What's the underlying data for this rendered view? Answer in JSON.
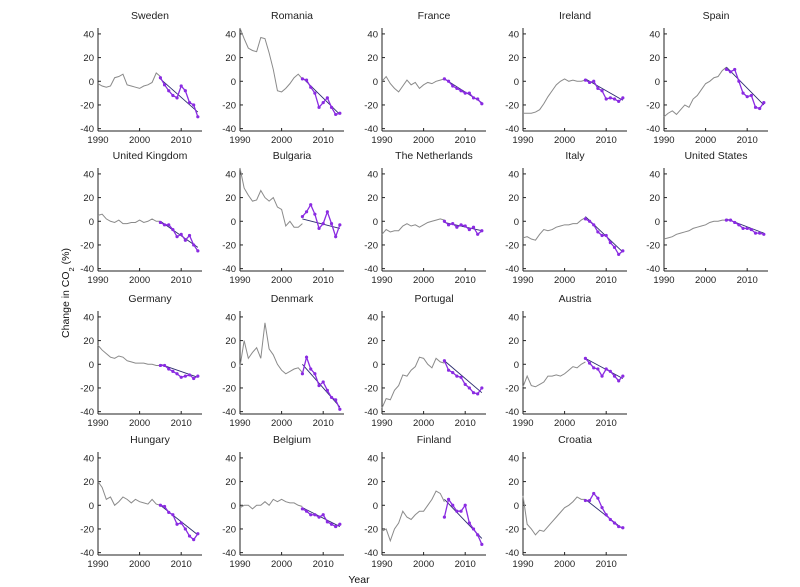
{
  "chart_data": {
    "type": "line",
    "xlabel": "Year",
    "ylabel": "Change in CO",
    "ylabel_sub": "2",
    "ylabel_suffix": " (%)",
    "xlim": [
      1990,
      2015
    ],
    "ylim": [
      -42,
      45
    ],
    "xticks": [
      1990,
      2000,
      2010
    ],
    "yticks": [
      -40,
      -20,
      0,
      20,
      40
    ],
    "grid": false,
    "colors": {
      "historical": "#8a8a8a",
      "recent": "#8a2be2",
      "trend": "#2b2b6e"
    },
    "recent_start_year": 2005,
    "panels": [
      {
        "title": "Sweden",
        "row": 0,
        "col": 0,
        "hist": [
          -2,
          -4,
          -5,
          -4,
          3,
          4,
          6,
          -3,
          -4,
          -5,
          -6,
          -4,
          -3,
          -1,
          7,
          4
        ],
        "recent": [
          3,
          -3,
          -8,
          -12,
          -14,
          -4,
          -8,
          -18,
          -20,
          -30
        ],
        "trend": [
          2,
          -26
        ]
      },
      {
        "title": "Romania",
        "row": 0,
        "col": 1,
        "hist": [
          45,
          36,
          28,
          26,
          25,
          37,
          36,
          24,
          10,
          -8,
          -9,
          -6,
          -2,
          3,
          6,
          2
        ],
        "recent": [
          2,
          1,
          -5,
          -10,
          -22,
          -18,
          -14,
          -22,
          -28,
          -27
        ],
        "trend": [
          3,
          -28
        ]
      },
      {
        "title": "France",
        "row": 0,
        "col": 2,
        "hist": [
          0,
          4,
          -2,
          -6,
          -9,
          -4,
          1,
          -3,
          -1,
          -6,
          -3,
          -1,
          -2,
          0,
          1,
          2
        ],
        "recent": [
          2,
          0,
          -4,
          -6,
          -8,
          -10,
          -10,
          -14,
          -15,
          -19
        ],
        "trend": [
          2,
          -18
        ]
      },
      {
        "title": "Ireland",
        "row": 0,
        "col": 3,
        "hist": [
          -27,
          -27,
          -27,
          -26,
          -24,
          -19,
          -13,
          -8,
          -3,
          0,
          2,
          0,
          1,
          0,
          0,
          1
        ],
        "recent": [
          1,
          -1,
          0,
          -6,
          -8,
          -15,
          -14,
          -15,
          -17,
          -14
        ],
        "trend": [
          2,
          -16
        ]
      },
      {
        "title": "Spain",
        "row": 0,
        "col": 4,
        "hist": [
          -30,
          -27,
          -25,
          -28,
          -24,
          -20,
          -22,
          -15,
          -12,
          -7,
          -2,
          0,
          3,
          4,
          9,
          12
        ],
        "recent": [
          10,
          8,
          10,
          0,
          -10,
          -13,
          -12,
          -22,
          -23,
          -18
        ],
        "trend": [
          12,
          -20
        ]
      },
      {
        "title": "United Kingdom",
        "row": 1,
        "col": 0,
        "hist": [
          5,
          6,
          2,
          0,
          -1,
          1,
          -2,
          -2,
          -1,
          -1,
          1,
          -1,
          0,
          2,
          0,
          0
        ],
        "recent": [
          -1,
          -3,
          -3,
          -7,
          -13,
          -11,
          -16,
          -12,
          -20,
          -25
        ],
        "trend": [
          0,
          -22
        ]
      },
      {
        "title": "Bulgaria",
        "row": 1,
        "col": 1,
        "hist": [
          45,
          28,
          22,
          17,
          18,
          26,
          20,
          17,
          20,
          12,
          10,
          -4,
          0,
          -5,
          -5,
          -2
        ],
        "recent": [
          4,
          8,
          14,
          6,
          -6,
          -2,
          8,
          -2,
          -13,
          -3
        ],
        "trend": [
          2,
          -6
        ]
      },
      {
        "title": "The Netherlands",
        "row": 1,
        "col": 2,
        "hist": [
          -11,
          -7,
          -9,
          -8,
          -8,
          -4,
          -2,
          -4,
          -3,
          -5,
          -3,
          -1,
          0,
          1,
          2,
          1
        ],
        "recent": [
          0,
          -3,
          -2,
          -5,
          -3,
          -4,
          -7,
          -5,
          -11,
          -8
        ],
        "trend": [
          -1,
          -8
        ]
      },
      {
        "title": "Italy",
        "row": 1,
        "col": 3,
        "hist": [
          -14,
          -13,
          -15,
          -16,
          -11,
          -7,
          -8,
          -7,
          -5,
          -4,
          -3,
          -3,
          -2,
          -2,
          1,
          3
        ],
        "recent": [
          2,
          0,
          -3,
          -9,
          -12,
          -12,
          -18,
          -22,
          -28,
          -25
        ],
        "trend": [
          4,
          -26
        ]
      },
      {
        "title": "United States",
        "row": 1,
        "col": 4,
        "hist": [
          -15,
          -14,
          -13,
          -11,
          -10,
          -9,
          -8,
          -6,
          -5,
          -4,
          -3,
          -1,
          0,
          0,
          1,
          1
        ],
        "recent": [
          1,
          1,
          -1,
          -3,
          -6,
          -6,
          -7,
          -10,
          -10,
          -11
        ],
        "trend": [
          2,
          -10
        ]
      },
      {
        "title": "Germany",
        "row": 2,
        "col": 0,
        "hist": [
          16,
          12,
          9,
          6,
          5,
          7,
          6,
          3,
          2,
          1,
          1,
          1,
          0,
          0,
          -1,
          -1
        ],
        "recent": [
          -1,
          -1,
          -4,
          -6,
          -8,
          -11,
          -10,
          -9,
          -12,
          -10
        ],
        "trend": [
          0,
          -11
        ]
      },
      {
        "title": "Denmark",
        "row": 2,
        "col": 1,
        "hist": [
          -2,
          20,
          5,
          10,
          14,
          5,
          35,
          13,
          8,
          0,
          -5,
          -8,
          -6,
          -4,
          -3,
          -7
        ],
        "recent": [
          -8,
          6,
          -4,
          -8,
          -18,
          -15,
          -22,
          -28,
          -30,
          -38
        ],
        "trend": [
          0,
          -36
        ]
      },
      {
        "title": "Portugal",
        "row": 2,
        "col": 2,
        "hist": [
          -37,
          -29,
          -30,
          -22,
          -18,
          -9,
          -10,
          -5,
          -2,
          6,
          5,
          0,
          -3,
          5,
          2,
          1
        ],
        "recent": [
          3,
          -5,
          -7,
          -10,
          -11,
          -17,
          -20,
          -24,
          -25,
          -20
        ],
        "trend": [
          3,
          -24
        ]
      },
      {
        "title": "Austria",
        "row": 2,
        "col": 3,
        "hist": [
          -19,
          -10,
          -18,
          -19,
          -17,
          -15,
          -10,
          -10,
          -9,
          -10,
          -8,
          -5,
          -2,
          -3,
          0,
          2
        ],
        "recent": [
          5,
          1,
          -3,
          -4,
          -10,
          -4,
          -6,
          -10,
          -14,
          -10
        ],
        "trend": [
          5,
          -12
        ]
      },
      {
        "title": "Hungary",
        "row": 3,
        "col": 0,
        "hist": [
          20,
          15,
          5,
          7,
          0,
          3,
          7,
          5,
          2,
          5,
          3,
          2,
          1,
          5,
          1,
          0
        ],
        "recent": [
          0,
          -1,
          -6,
          -8,
          -16,
          -15,
          -20,
          -26,
          -29,
          -24
        ],
        "trend": [
          0,
          -25
        ]
      },
      {
        "title": "Belgium",
        "row": 3,
        "col": 1,
        "hist": [
          -2,
          0,
          0,
          -3,
          0,
          0,
          3,
          0,
          5,
          3,
          5,
          3,
          2,
          2,
          0,
          -1
        ],
        "recent": [
          -3,
          -5,
          -8,
          -8,
          -10,
          -8,
          -14,
          -16,
          -18,
          -16
        ],
        "trend": [
          -2,
          -18
        ]
      },
      {
        "title": "Finland",
        "row": 3,
        "col": 2,
        "hist": [
          -22,
          -20,
          -30,
          -20,
          -15,
          -5,
          -10,
          -12,
          -8,
          -5,
          -5,
          0,
          5,
          12,
          10,
          3
        ],
        "recent": [
          -10,
          5,
          0,
          -5,
          -5,
          0,
          -15,
          -20,
          -25,
          -33
        ],
        "trend": [
          5,
          -28
        ]
      },
      {
        "title": "Croatia",
        "row": 3,
        "col": 3,
        "hist": [
          8,
          -16,
          -20,
          -25,
          -21,
          -22,
          -18,
          -14,
          -10,
          -6,
          -2,
          0,
          3,
          7,
          5,
          5
        ],
        "recent": [
          4,
          4,
          10,
          6,
          -2,
          -8,
          -12,
          -15,
          -18,
          -19
        ],
        "trend": [
          5,
          -20
        ]
      }
    ]
  }
}
